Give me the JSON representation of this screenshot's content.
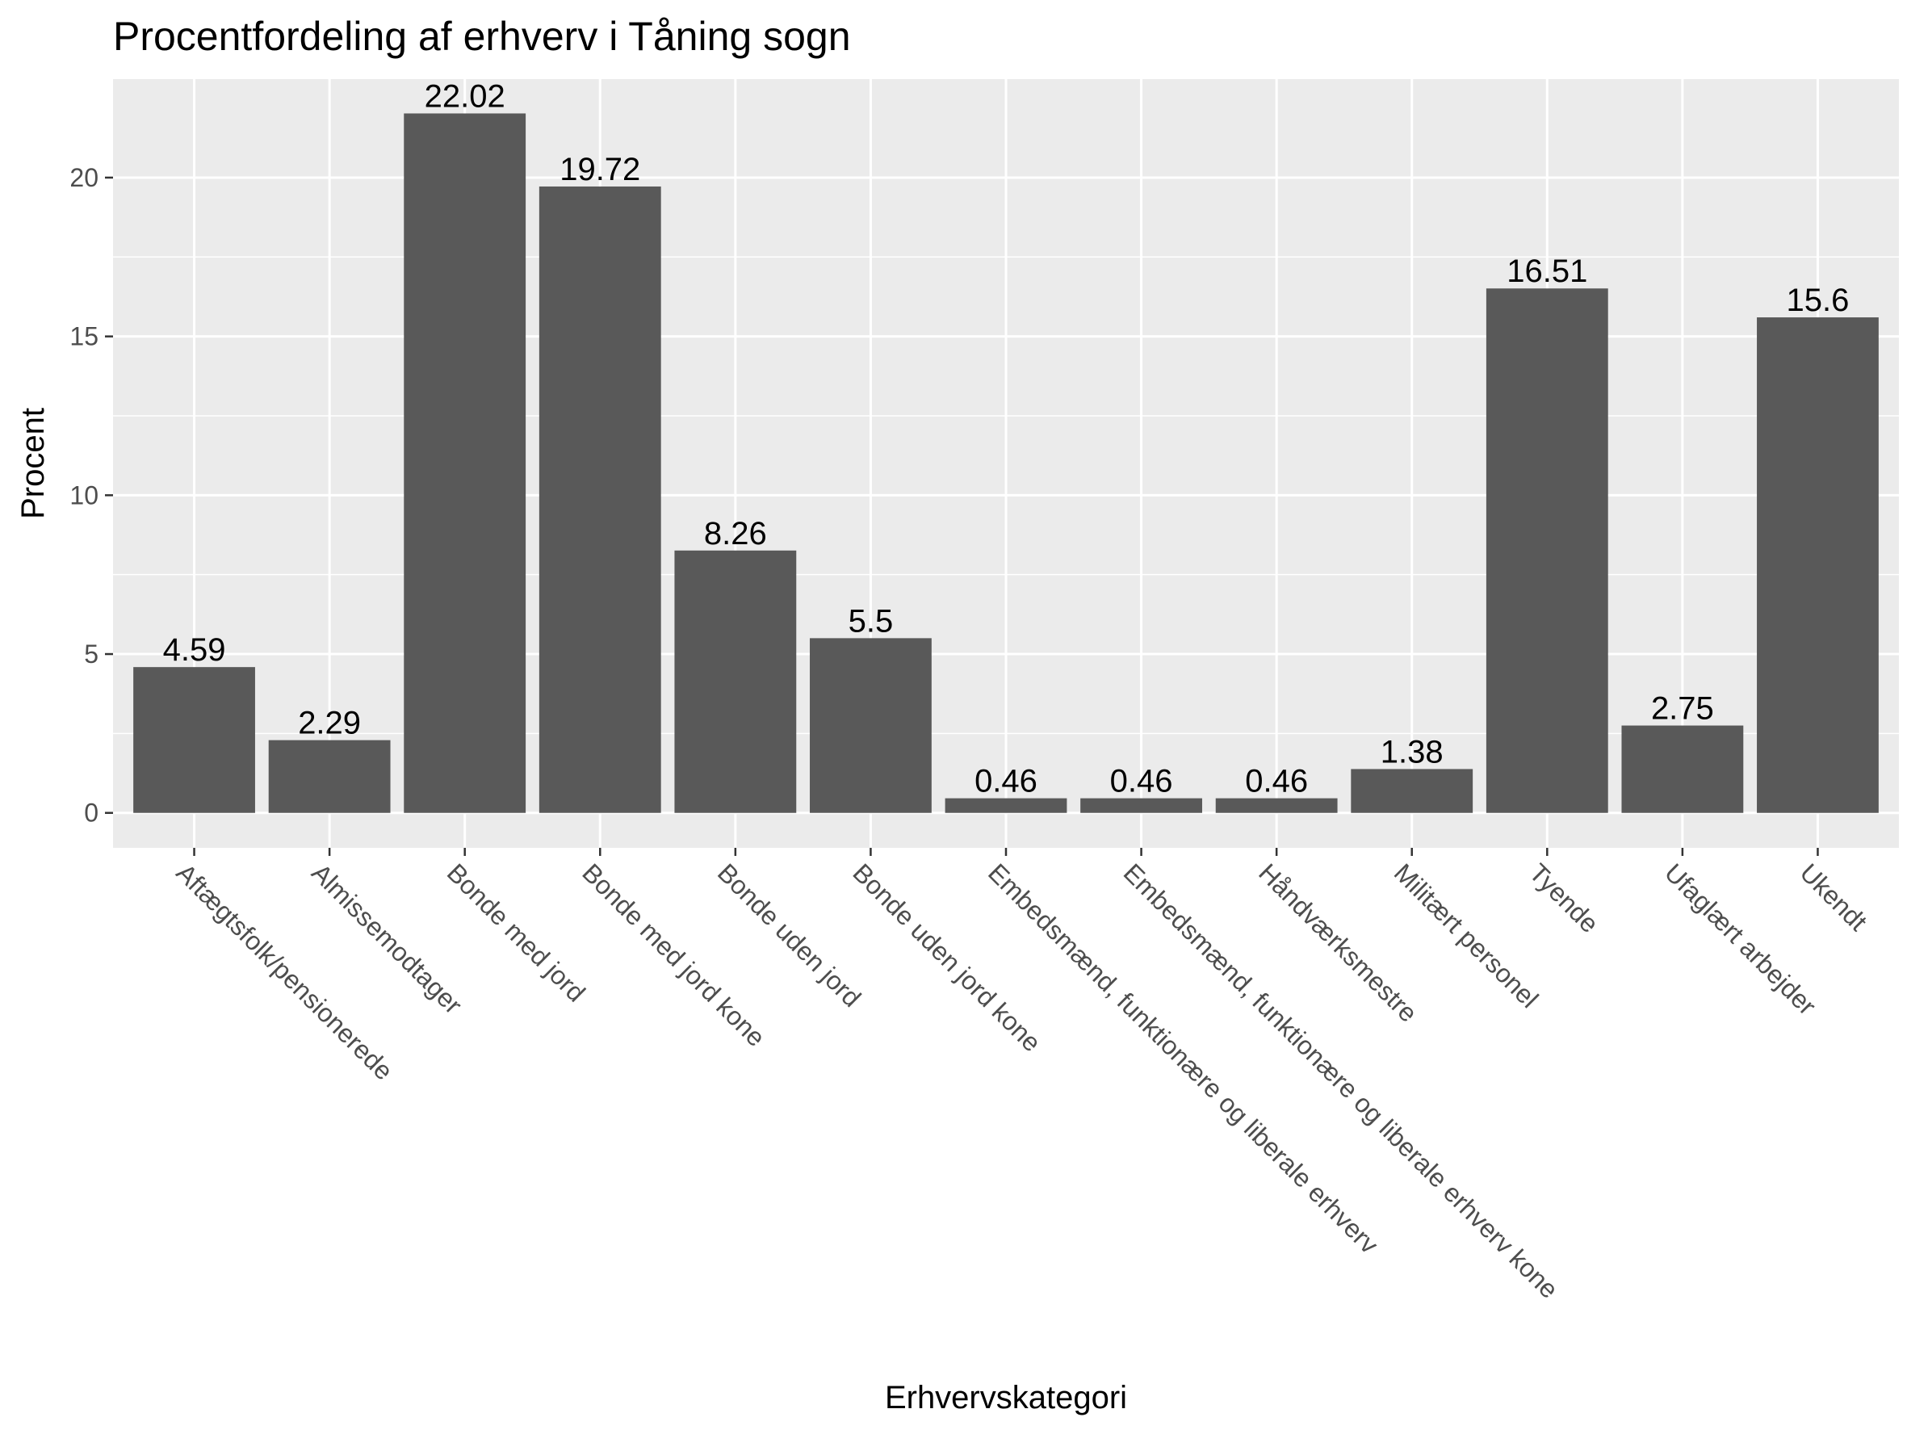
{
  "chart_data": {
    "type": "bar",
    "title": "Procentfordeling af erhverv i Tåning sogn",
    "xlabel": "Erhvervskategori",
    "ylabel": "Procent",
    "categories": [
      "Aftægtsfolk/pensionerede",
      "Almissemodtager",
      "Bonde med jord",
      "Bonde med jord kone",
      "Bonde uden jord",
      "Bonde uden jord kone",
      "Embedsmænd, funktionære og liberale erhverv",
      "Embedsmænd, funktionære og liberale erhverv kone",
      "Håndværksmestre",
      "Militært personel",
      "Tyende",
      "Ufaglært arbejder",
      "Ukendt"
    ],
    "values": [
      4.59,
      2.29,
      22.02,
      19.72,
      8.26,
      5.5,
      0.46,
      0.46,
      0.46,
      1.38,
      16.51,
      2.75,
      15.6
    ],
    "labels": [
      "4.59",
      "2.29",
      "22.02",
      "19.72",
      "8.26",
      "5.5",
      "0.46",
      "0.46",
      "0.46",
      "1.38",
      "16.51",
      "2.75",
      "15.6"
    ],
    "yticks": [
      0,
      5,
      10,
      15,
      20
    ],
    "ylim": [
      -1.1,
      23.1
    ],
    "grid": true,
    "legend": "none",
    "colors": {
      "bar": "#595959",
      "panel": "#ebebeb",
      "grid_major": "#ffffff",
      "tick_text": "#4d4d4d",
      "tick_mark": "#333333"
    }
  }
}
